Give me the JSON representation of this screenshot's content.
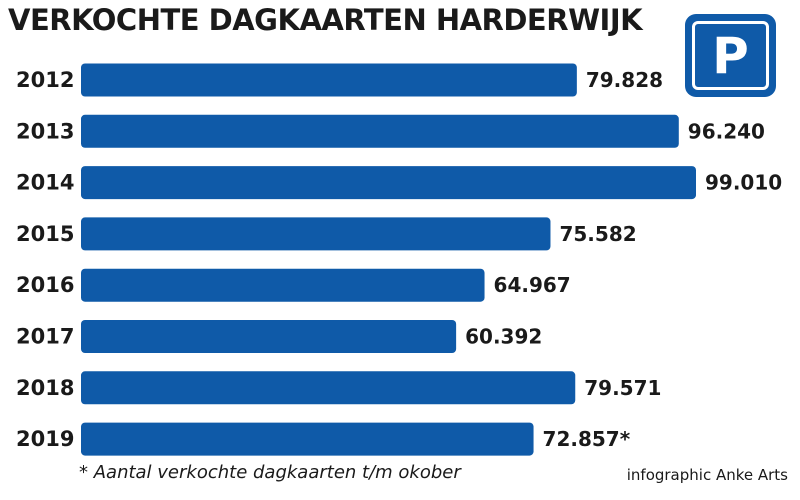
{
  "chart_data": {
    "type": "bar",
    "orientation": "horizontal",
    "title": "VERKOCHTE DAGKAARTEN HARDERWIJK",
    "categories": [
      "2012",
      "2013",
      "2014",
      "2015",
      "2016",
      "2017",
      "2018",
      "2019"
    ],
    "values": [
      79828,
      96240,
      99010,
      75582,
      64967,
      60392,
      79571,
      72857
    ],
    "value_labels": [
      "79.828",
      "96.240",
      "99.010",
      "75.582",
      "64.967",
      "60.392",
      "79.571",
      "72.857*"
    ],
    "grid": false,
    "bar_color": "#0f5aa8"
  },
  "parking_sign": {
    "letter": "P",
    "icon": "parking-sign-icon"
  },
  "footnote": "* Aantal verkochte dagkaarten t/m okober",
  "credit": "infographic Anke Arts"
}
